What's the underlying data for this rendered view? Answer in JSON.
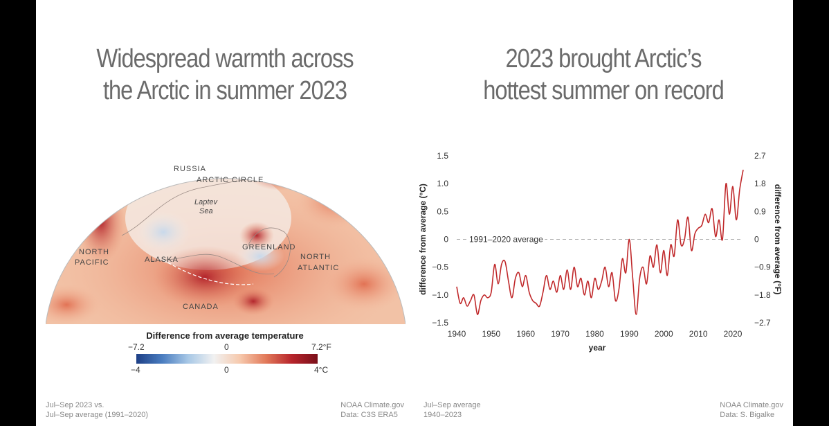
{
  "left_panel": {
    "title_lines": [
      "Widespread warmth across",
      "the Arctic in summer 2023"
    ],
    "map_labels": {
      "russia": "RUSSIA",
      "arctic_circle": "ARCTIC CIRCLE",
      "laptev": "Laptev",
      "sea": "Sea",
      "north1": "NORTH",
      "pacific": "PACIFIC",
      "alaska": "ALASKA",
      "greenland": "GREENLAND",
      "north2": "NORTH",
      "atlantic": "ATLANTIC",
      "canada": "CANADA"
    },
    "legend": {
      "title": "Difference from average temperature",
      "f_min": "−7.2",
      "f_mid": "0",
      "f_max": "7.2°F",
      "c_min": "−4",
      "c_mid": "0",
      "c_max": "4°C",
      "colors": [
        "#1d3f86",
        "#4a7dc0",
        "#a8c8e6",
        "#f1f1f1",
        "#f6c9ad",
        "#e27a5a",
        "#b7252c",
        "#7a0f1a"
      ]
    },
    "footer_left": [
      "Jul–Sep 2023 vs.",
      "Jul–Sep average (1991–2020)"
    ],
    "footer_right": [
      "NOAA Climate.gov",
      "Data: C3S ERA5"
    ]
  },
  "right_panel": {
    "title_lines": [
      "2023 brought Arctic’s",
      "hottest summer on record"
    ],
    "footer_left": [
      "Jul–Sep average",
      "1940–2023"
    ],
    "footer_right": [
      "NOAA Climate.gov",
      "Data: S. Bigalke"
    ]
  },
  "chart_data": {
    "type": "line",
    "xlabel": "year",
    "ylabel": "difference from average (°C)",
    "ylabel_right": "difference from average (°F)",
    "xlim": [
      1940,
      2023
    ],
    "ylim": [
      -1.5,
      1.5
    ],
    "x_ticks": [
      "1940",
      "1950",
      "1960",
      "1970",
      "1980",
      "1990",
      "2000",
      "2010",
      "2020"
    ],
    "y_ticks_left": [
      "1.5",
      "1.0",
      "0.5",
      "0",
      "−0.5",
      "−1.0",
      "−1.5"
    ],
    "y_ticks_left_values": [
      1.5,
      1.0,
      0.5,
      0,
      -0.5,
      -1.0,
      -1.5
    ],
    "y_ticks_right": [
      "2.7",
      "1.8",
      "0.9",
      "0",
      "−0.9",
      "−1.8",
      "−2.7"
    ],
    "reference_line": {
      "value": 0,
      "label": "1991–2020 average"
    },
    "line_color": "#c0282a",
    "x": [
      1940,
      1941,
      1942,
      1943,
      1944,
      1945,
      1946,
      1947,
      1948,
      1949,
      1950,
      1951,
      1952,
      1953,
      1954,
      1955,
      1956,
      1957,
      1958,
      1959,
      1960,
      1961,
      1962,
      1963,
      1964,
      1965,
      1966,
      1967,
      1968,
      1969,
      1970,
      1971,
      1972,
      1973,
      1974,
      1975,
      1976,
      1977,
      1978,
      1979,
      1980,
      1981,
      1982,
      1983,
      1984,
      1985,
      1986,
      1987,
      1988,
      1989,
      1990,
      1991,
      1992,
      1993,
      1994,
      1995,
      1996,
      1997,
      1998,
      1999,
      2000,
      2001,
      2002,
      2003,
      2004,
      2005,
      2006,
      2007,
      2008,
      2009,
      2010,
      2011,
      2012,
      2013,
      2014,
      2015,
      2016,
      2017,
      2018,
      2019,
      2020,
      2021,
      2022,
      2023
    ],
    "y": [
      -0.85,
      -1.15,
      -1.05,
      -1.2,
      -1.1,
      -1.0,
      -1.35,
      -1.1,
      -1.0,
      -1.05,
      -0.95,
      -0.45,
      -0.8,
      -0.45,
      -0.4,
      -0.75,
      -1.05,
      -0.7,
      -0.6,
      -0.85,
      -0.65,
      -0.95,
      -1.1,
      -1.15,
      -1.2,
      -0.95,
      -0.65,
      -0.9,
      -0.75,
      -0.95,
      -0.65,
      -0.9,
      -0.55,
      -0.9,
      -0.5,
      -0.85,
      -0.7,
      -1.0,
      -0.75,
      -1.05,
      -0.7,
      -0.9,
      -0.75,
      -0.5,
      -0.85,
      -0.6,
      -1.1,
      -0.9,
      -0.35,
      -0.6,
      0.0,
      -0.7,
      -1.35,
      -0.7,
      -0.5,
      -0.8,
      -0.3,
      -0.5,
      -0.1,
      -0.6,
      -0.2,
      -0.65,
      -0.1,
      -0.3,
      0.35,
      -0.1,
      0.0,
      0.4,
      -0.2,
      0.1,
      0.2,
      0.25,
      0.45,
      0.3,
      0.55,
      0.05,
      0.35,
      0.0,
      1.0,
      0.45,
      0.95,
      0.35,
      0.9,
      1.25
    ]
  }
}
